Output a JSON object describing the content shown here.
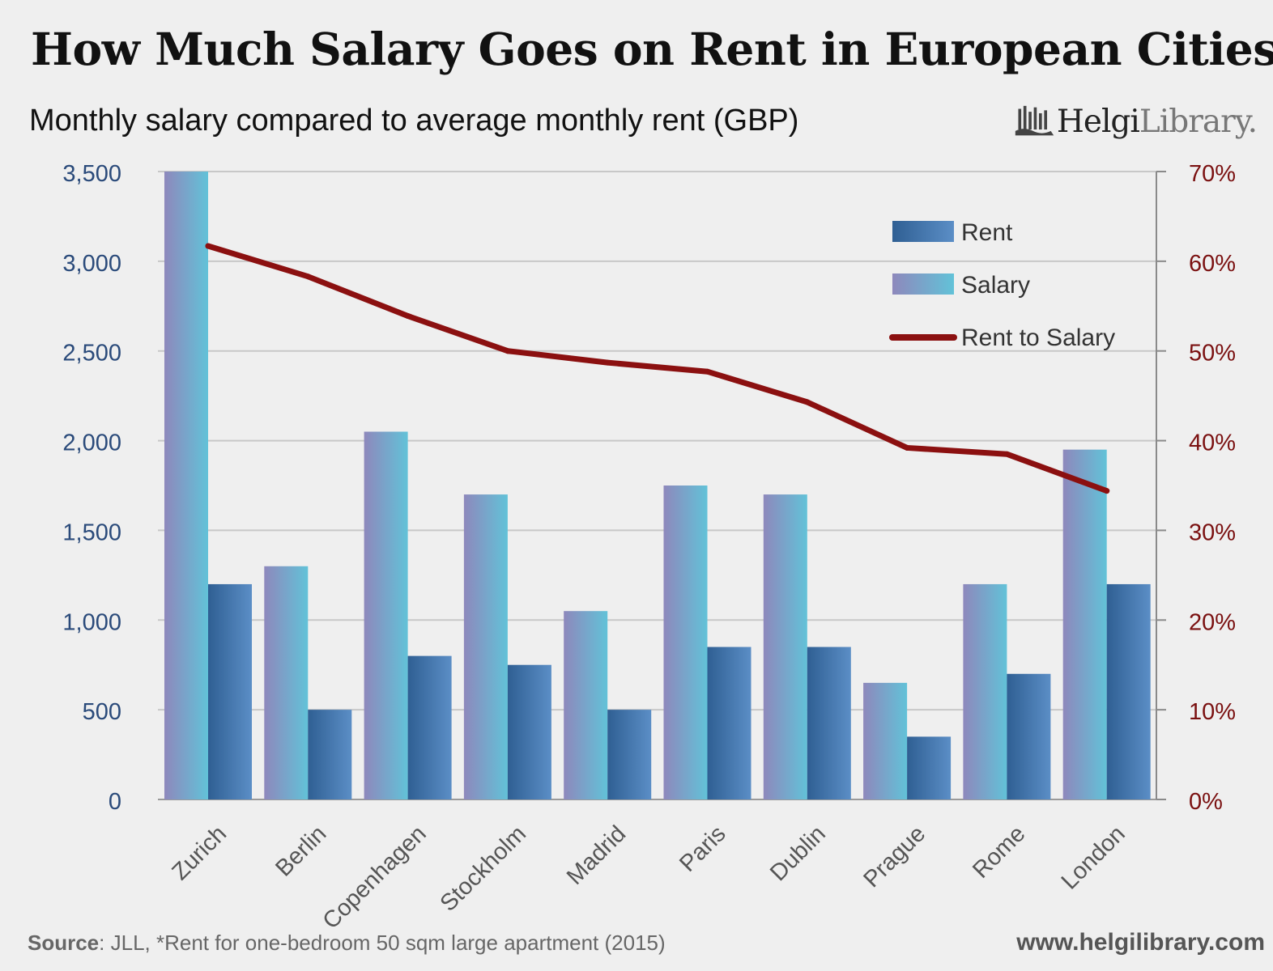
{
  "title": "How Much Salary Goes on Rent in European Cities?",
  "subtitle": "Monthly salary compared to average monthly rent (GBP)",
  "logo": {
    "bold": "Helgi",
    "light": "Library."
  },
  "footer": {
    "source_label": "Source",
    "source_text": ": JLL, *Rent for one-bedroom 50 sqm large apartment (2015)",
    "url": "www.helgilibrary.com"
  },
  "colors": {
    "salary_start": "#8e88bc",
    "salary_end": "#62c2d8",
    "rent_start": "#2f5f93",
    "rent_end": "#5b8ec6",
    "line": "#8b1010",
    "left_axis_text": "#2a4a7a",
    "right_axis_text": "#7a1010",
    "grid": "#c8c8c8"
  },
  "chart_data": {
    "type": "bar",
    "categories": [
      "Zurich",
      "Berlin",
      "Copenhagen",
      "Stockholm",
      "Madrid",
      "Paris",
      "Dublin",
      "Prague",
      "Rome",
      "London"
    ],
    "series": [
      {
        "name": "Salary",
        "type": "bar",
        "axis": "left",
        "values": [
          3500,
          1300,
          2050,
          1700,
          1050,
          1750,
          1700,
          650,
          1200,
          1950
        ]
      },
      {
        "name": "Rent",
        "type": "bar",
        "axis": "left",
        "values": [
          1200,
          500,
          800,
          750,
          500,
          850,
          850,
          350,
          700,
          1200
        ]
      },
      {
        "name": "Rent to Salary",
        "type": "line",
        "axis": "right",
        "values": [
          0.617,
          0.583,
          0.539,
          0.5,
          0.487,
          0.477,
          0.443,
          0.392,
          0.385,
          0.344
        ]
      }
    ],
    "legend": [
      "Rent",
      "Salary",
      "Rent to Salary"
    ],
    "legend_position": "top-right",
    "y_left": {
      "min": 0,
      "max": 3500,
      "ticks": [
        "0",
        "500",
        "1,000",
        "1,500",
        "2,000",
        "2,500",
        "3,000",
        "3,500"
      ]
    },
    "y_right": {
      "min": 0,
      "max": 0.7,
      "ticks": [
        "0%",
        "10%",
        "20%",
        "30%",
        "40%",
        "50%",
        "60%",
        "70%"
      ]
    },
    "grid": true
  }
}
